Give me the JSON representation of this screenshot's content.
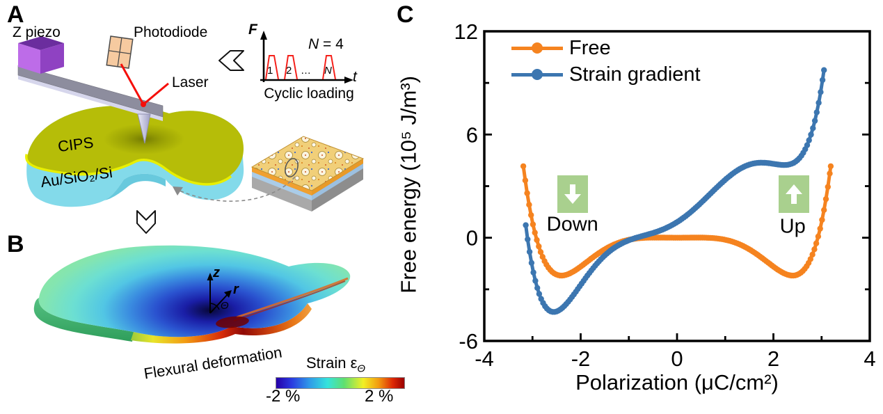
{
  "panels": {
    "a": {
      "label": "A",
      "z_piezo_label": "Z piezo",
      "photodiode_label": "Photodiode",
      "laser_label": "Laser",
      "cips_label": "CIPS",
      "substrate_label": "Au/SiO₂/Si",
      "inset": {
        "f_axis": "F",
        "t_axis": "t",
        "n_var": "N",
        "n_eq": " = 4",
        "pulse_labels": [
          "1",
          "2",
          "…",
          "N"
        ],
        "caption": "Cyclic loading",
        "pulse_color": "#f5201a"
      }
    },
    "b": {
      "label": "B",
      "caption": "Flexural deformation",
      "axis_z": "z",
      "axis_r": "r",
      "axis_theta": "Θ",
      "colorbar": {
        "title_main": "Strain ε",
        "title_sub": "Θ",
        "min_label": "-2 %",
        "max_label": "2 %"
      }
    },
    "c": {
      "label": "C"
    }
  },
  "chart_data": {
    "type": "line",
    "title": "",
    "xlabel": "Polarization (μC/cm²)",
    "ylabel": "Free energy (10⁵ J/m³)",
    "xlim": [
      -4,
      4
    ],
    "ylim": [
      -6,
      12
    ],
    "grid": false,
    "legend_position": "top-left",
    "xticks": [
      {
        "v": -4,
        "label": "-4"
      },
      {
        "v": -2,
        "label": "-2"
      },
      {
        "v": 0,
        "label": "0"
      },
      {
        "v": 2,
        "label": "2"
      },
      {
        "v": 4,
        "label": "4"
      }
    ],
    "xminor": [
      -3,
      -1,
      1,
      3
    ],
    "yticks": [
      {
        "v": -6,
        "label": "-6"
      },
      {
        "v": 0,
        "label": "0"
      },
      {
        "v": 6,
        "label": "6"
      },
      {
        "v": 12,
        "label": "12"
      }
    ],
    "yminor": [
      -3,
      3,
      9
    ],
    "series": [
      {
        "name": "Free",
        "color": "#f5831f",
        "marker": "circle",
        "domain": [
          -3.19,
          3.19
        ],
        "poly": {
          "p6": 0.02553,
          "p4": -0.2278,
          "p2": 0.083,
          "p1": 0,
          "p0": 0
        },
        "points": [
          [
            -3.19,
            4.16
          ],
          [
            -3.0,
            0.91
          ],
          [
            -2.75,
            -1.36
          ],
          [
            -2.5,
            -2.15
          ],
          [
            -2.25,
            -2.11
          ],
          [
            -2.0,
            -1.68
          ],
          [
            -1.75,
            -1.15
          ],
          [
            -1.5,
            -0.68
          ],
          [
            -1.25,
            -0.33
          ],
          [
            -1.0,
            -0.12
          ],
          [
            -0.75,
            -0.02
          ],
          [
            -0.5,
            0.01
          ],
          [
            -0.25,
            0.0
          ],
          [
            0.0,
            0.0
          ],
          [
            0.25,
            0.0
          ],
          [
            0.5,
            0.01
          ],
          [
            0.75,
            -0.02
          ],
          [
            1.0,
            -0.12
          ],
          [
            1.25,
            -0.33
          ],
          [
            1.5,
            -0.68
          ],
          [
            1.75,
            -1.15
          ],
          [
            2.0,
            -1.68
          ],
          [
            2.25,
            -2.11
          ],
          [
            2.5,
            -2.15
          ],
          [
            2.75,
            -1.36
          ],
          [
            3.0,
            0.91
          ],
          [
            3.19,
            4.16
          ]
        ]
      },
      {
        "name": "Strain gradient",
        "color": "#3c76b0",
        "marker": "circle",
        "domain": [
          -3.14,
          3.05
        ],
        "poly": {
          "p6": 0.0388,
          "p4": -0.4396,
          "p2": 1.105,
          "p1": 1.76,
          "p0": 0.906
        },
        "points": [
          [
            -3.14,
            0.73
          ],
          [
            -3.0,
            -1.75
          ],
          [
            -2.75,
            -3.93
          ],
          [
            -2.56,
            -4.32
          ],
          [
            -2.5,
            -4.29
          ],
          [
            -2.25,
            -3.69
          ],
          [
            -2.0,
            -2.75
          ],
          [
            -1.75,
            -1.8
          ],
          [
            -1.5,
            -1.03
          ],
          [
            -1.25,
            -0.49
          ],
          [
            -1.0,
            -0.15
          ],
          [
            -0.75,
            0.08
          ],
          [
            -0.5,
            0.28
          ],
          [
            -0.25,
            0.53
          ],
          [
            0.0,
            0.91
          ],
          [
            0.25,
            1.41
          ],
          [
            0.5,
            2.04
          ],
          [
            0.75,
            2.72
          ],
          [
            1.0,
            3.37
          ],
          [
            1.25,
            3.91
          ],
          [
            1.5,
            4.25
          ],
          [
            1.75,
            4.36
          ],
          [
            2.0,
            4.3
          ],
          [
            2.25,
            4.23
          ],
          [
            2.5,
            4.51
          ],
          [
            2.75,
            5.75
          ],
          [
            3.0,
            8.81
          ],
          [
            3.05,
            9.7
          ]
        ]
      }
    ],
    "annotations": [
      {
        "label": "Down",
        "arrow": "down",
        "box_xy": [
          -2.17,
          2.55
        ],
        "label_xy": [
          -2.17,
          0.75
        ],
        "box_color": "#a9d08e",
        "arrow_color": "#ffffff"
      },
      {
        "label": "Up",
        "arrow": "up",
        "box_xy": [
          2.43,
          2.55
        ],
        "label_xy": [
          2.4,
          0.65
        ],
        "box_color": "#a9d08e",
        "arrow_color": "#ffffff"
      }
    ]
  }
}
